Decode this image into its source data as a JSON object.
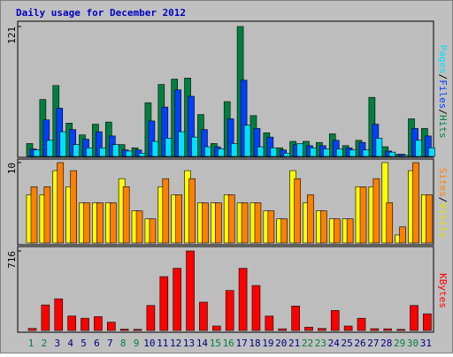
{
  "chart_data": [
    {
      "type": "bar",
      "title": "Daily usage for December 2012",
      "categories": [
        "1",
        "2",
        "3",
        "4",
        "5",
        "6",
        "7",
        "8",
        "9",
        "10",
        "11",
        "12",
        "13",
        "14",
        "15",
        "16",
        "17",
        "18",
        "19",
        "20",
        "21",
        "22",
        "23",
        "24",
        "25",
        "26",
        "27",
        "28",
        "29",
        "30",
        "31"
      ],
      "category_colors": [
        "#008040",
        "#008040",
        "#000080",
        "#000080",
        "#000080",
        "#000080",
        "#000080",
        "#008040",
        "#008040",
        "#000080",
        "#000080",
        "#000080",
        "#000080",
        "#000080",
        "#008040",
        "#008040",
        "#000080",
        "#000080",
        "#000080",
        "#000080",
        "#000080",
        "#008040",
        "#008040",
        "#000080",
        "#000080",
        "#000080",
        "#000080",
        "#000080",
        "#008040",
        "#008040",
        "#000080"
      ],
      "legend_separator": "/",
      "ylim": [
        0,
        121
      ],
      "yticks": [
        121
      ],
      "series": [
        {
          "name": "Hits",
          "color": "#008040",
          "values": [
            12,
            53,
            66,
            31,
            20,
            30,
            32,
            11,
            8,
            50,
            67,
            72,
            73,
            39,
            12,
            51,
            121,
            38,
            22,
            8,
            14,
            14,
            13,
            21,
            10,
            15,
            55,
            9,
            2,
            35,
            26
          ]
        },
        {
          "name": "Files",
          "color": "#0040ff",
          "values": [
            7,
            34,
            45,
            25,
            16,
            23,
            19,
            6,
            6,
            33,
            46,
            62,
            56,
            25,
            9,
            35,
            71,
            26,
            18,
            6,
            11,
            10,
            10,
            15,
            8,
            13,
            30,
            5,
            2,
            26,
            19
          ]
        },
        {
          "name": "Pages",
          "color": "#00e0ff",
          "values": [
            6,
            15,
            23,
            11,
            8,
            8,
            11,
            5,
            3,
            14,
            17,
            23,
            18,
            9,
            7,
            12,
            29,
            9,
            8,
            3,
            12,
            8,
            7,
            7,
            6,
            6,
            17,
            4,
            1,
            15,
            8
          ]
        }
      ]
    },
    {
      "type": "bar",
      "legend_separator": "/",
      "ylim": [
        0,
        10
      ],
      "yticks": [
        10
      ],
      "series": [
        {
          "name": "Visits",
          "color": "#ffff00",
          "values": [
            6,
            6,
            9,
            7,
            5,
            5,
            5,
            8,
            4,
            3,
            7,
            6,
            9,
            5,
            5,
            6,
            5,
            5,
            4,
            3,
            9,
            5,
            4,
            3,
            3,
            7,
            7,
            10,
            1,
            9,
            6
          ]
        },
        {
          "name": "Sites",
          "color": "#ff8000",
          "values": [
            7,
            7,
            10,
            9,
            5,
            5,
            5,
            7,
            4,
            3,
            8,
            6,
            8,
            5,
            5,
            6,
            5,
            5,
            4,
            3,
            8,
            6,
            4,
            3,
            3,
            7,
            8,
            5,
            2,
            10,
            6
          ]
        }
      ]
    },
    {
      "type": "bar",
      "legend_separator": "/",
      "ylim": [
        0,
        716
      ],
      "yticks": [
        716
      ],
      "series": [
        {
          "name": "KBytes",
          "color": "#ff0000",
          "values": [
            18,
            230,
            285,
            130,
            110,
            125,
            75,
            12,
            10,
            225,
            485,
            560,
            716,
            255,
            40,
            360,
            560,
            405,
            130,
            15,
            220,
            30,
            18,
            180,
            40,
            110,
            16,
            15,
            10,
            225,
            150
          ]
        }
      ]
    }
  ]
}
